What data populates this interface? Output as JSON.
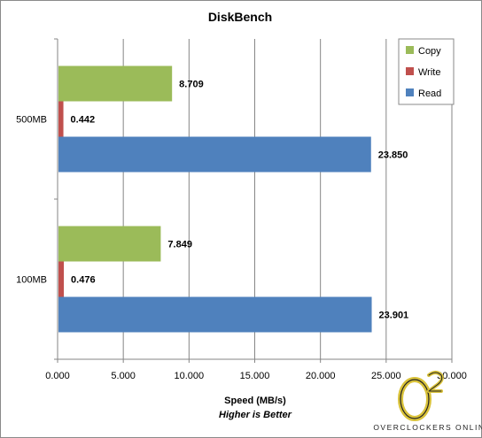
{
  "chart_data": {
    "type": "bar",
    "orientation": "horizontal",
    "title": "DiskBench",
    "categories": [
      "500MB",
      "100MB"
    ],
    "series": [
      {
        "name": "Copy",
        "color": "#9BBB59",
        "values": [
          8.709,
          7.849
        ]
      },
      {
        "name": "Write",
        "color": "#C0504D",
        "values": [
          0.442,
          0.476
        ]
      },
      {
        "name": "Read",
        "color": "#4F81BD",
        "values": [
          23.85,
          23.901
        ]
      }
    ],
    "data_labels": [
      [
        "8.709",
        "7.849"
      ],
      [
        "0.442",
        "0.476"
      ],
      [
        "23.850",
        "23.901"
      ]
    ],
    "xlabel": "Speed (MB/s)",
    "subtitle": "Higher is Better",
    "xlim": [
      0,
      30
    ],
    "xticks": [
      "0.000",
      "5.000",
      "10.000",
      "15.000",
      "20.000",
      "25.000",
      "30.000"
    ],
    "grid": true,
    "legend_position": "top-right"
  },
  "watermark": {
    "text": "OVERCLOCKERS ONLINE",
    "logo": "O2",
    "icon": "o2-logo-icon"
  }
}
